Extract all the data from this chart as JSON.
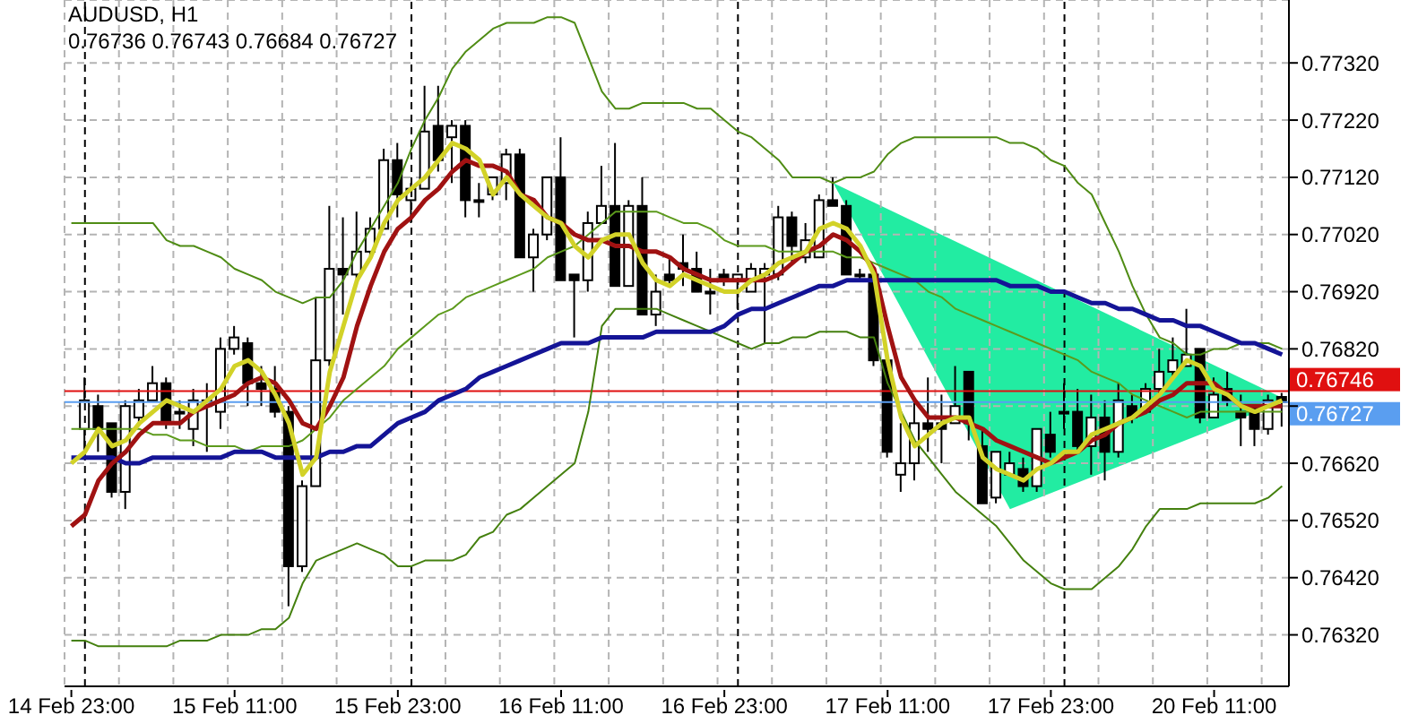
{
  "chart_data": {
    "type": "candlestick",
    "title": "AUDUSD, H1",
    "subtitle": "0.76736 0.76743 0.76684 0.76727",
    "categories": [
      "14 Feb 23:00",
      null,
      null,
      null,
      null,
      null,
      null,
      null,
      null,
      null,
      null,
      null,
      "15 Feb 11:00",
      null,
      null,
      null,
      null,
      null,
      null,
      null,
      null,
      null,
      null,
      null,
      "15 Feb 23:00",
      null,
      null,
      null,
      null,
      null,
      null,
      null,
      null,
      null,
      null,
      null,
      "16 Feb 11:00",
      null,
      null,
      null,
      null,
      null,
      null,
      null,
      null,
      null,
      null,
      null,
      "16 Feb 23:00",
      null,
      null,
      null,
      null,
      null,
      null,
      null,
      null,
      null,
      null,
      null,
      "17 Feb 11:00",
      null,
      null,
      null,
      null,
      null,
      null,
      null,
      null,
      null,
      null,
      null,
      "17 Feb 23:00",
      null,
      null,
      null,
      null,
      null,
      null,
      null,
      null,
      null,
      null,
      null,
      "20 Feb 11:00",
      null,
      null,
      null,
      null,
      null
    ],
    "ohlc": [
      null,
      [
        0.7668,
        0.7677,
        0.7664,
        0.7673
      ],
      [
        0.7672,
        0.7674,
        0.7664,
        0.7668
      ],
      [
        0.7669,
        0.7669,
        0.7656,
        0.7657
      ],
      [
        0.7657,
        0.7673,
        0.7654,
        0.7672
      ],
      [
        0.767,
        0.7675,
        0.7669,
        0.7673
      ],
      [
        0.7673,
        0.7679,
        0.7673,
        0.7676
      ],
      [
        0.7676,
        0.7677,
        0.7668,
        0.7669
      ],
      [
        0.7671,
        0.7673,
        0.7668,
        0.7671
      ],
      [
        0.7668,
        0.7675,
        0.7665,
        0.7673
      ],
      [
        0.7672,
        0.7676,
        0.7664,
        0.7673
      ],
      [
        0.7671,
        0.7684,
        0.7668,
        0.7682
      ],
      [
        0.7682,
        0.7686,
        0.7681,
        0.7684
      ],
      [
        0.7683,
        0.7684,
        0.7672,
        0.7676
      ],
      [
        0.7676,
        0.7679,
        0.7672,
        0.7675
      ],
      [
        0.7675,
        0.7679,
        0.767,
        0.7671
      ],
      [
        0.7671,
        0.7672,
        0.7637,
        0.7644
      ],
      [
        0.7644,
        0.7659,
        0.7643,
        0.7658
      ],
      [
        0.7658,
        0.7691,
        0.7658,
        0.768
      ],
      [
        0.768,
        0.7707,
        0.7679,
        0.7696
      ],
      [
        0.7696,
        0.7705,
        0.7688,
        0.7695
      ],
      [
        0.7695,
        0.7706,
        0.7694,
        0.7699
      ],
      [
        0.7699,
        0.7705,
        0.7698,
        0.7703
      ],
      [
        0.7703,
        0.7717,
        0.7703,
        0.7715
      ],
      [
        0.7715,
        0.7718,
        0.7705,
        0.7709
      ],
      [
        0.7708,
        0.7711,
        0.7704,
        0.771
      ],
      [
        0.771,
        0.7728,
        0.771,
        0.772
      ],
      [
        0.7721,
        0.7728,
        0.7713,
        0.7715
      ],
      [
        0.7719,
        0.7722,
        0.7711,
        0.7721
      ],
      [
        0.7721,
        0.7722,
        0.7705,
        0.7708
      ],
      [
        0.7708,
        0.7711,
        0.7705,
        0.7708
      ],
      [
        0.7709,
        0.7712,
        0.7708,
        0.7712
      ],
      [
        0.7711,
        0.7717,
        0.7708,
        0.7716
      ],
      [
        0.7716,
        0.7717,
        0.7698,
        0.7698
      ],
      [
        0.7698,
        0.7703,
        0.7692,
        0.7702
      ],
      [
        0.7702,
        0.7712,
        0.7701,
        0.7712
      ],
      [
        0.7712,
        0.7719,
        0.7694,
        0.7694
      ],
      [
        0.7695,
        0.7695,
        0.7684,
        0.7694
      ],
      [
        0.7694,
        0.7706,
        0.7692,
        0.7704
      ],
      [
        0.7704,
        0.7714,
        0.7704,
        0.7707
      ],
      [
        0.7707,
        0.7718,
        0.7693,
        0.7693
      ],
      [
        0.7693,
        0.7708,
        0.7693,
        0.7707
      ],
      [
        0.7707,
        0.7712,
        0.7688,
        0.7688
      ],
      [
        0.7688,
        0.7695,
        0.7686,
        0.7692
      ],
      [
        0.7695,
        0.7698,
        0.7693,
        0.7694
      ],
      [
        0.7697,
        0.7702,
        0.7693,
        0.7696
      ],
      [
        0.7696,
        0.7699,
        0.7692,
        0.7692
      ],
      [
        0.7692,
        0.7696,
        0.7688,
        0.7692
      ],
      [
        0.7695,
        0.7696,
        0.7693,
        0.7694
      ],
      [
        0.7694,
        0.7695,
        0.7689,
        0.7695
      ],
      [
        0.7692,
        0.7697,
        0.7692,
        0.7696
      ],
      [
        0.7695,
        0.7697,
        0.7683,
        0.7696
      ],
      [
        0.7695,
        0.7707,
        0.7694,
        0.7705
      ],
      [
        0.7705,
        0.7706,
        0.7697,
        0.77
      ],
      [
        0.7698,
        0.7704,
        0.7697,
        0.7701
      ],
      [
        0.7698,
        0.7709,
        0.7698,
        0.7708
      ],
      [
        0.7708,
        0.7712,
        0.7707,
        0.7707
      ],
      [
        0.7707,
        0.7708,
        0.7695,
        0.7695
      ],
      [
        0.7695,
        0.7696,
        0.7694,
        0.7695
      ],
      [
        0.7695,
        0.7695,
        0.7679,
        0.768
      ],
      [
        0.768,
        0.768,
        0.7663,
        0.7664
      ],
      [
        0.766,
        0.7669,
        0.7657,
        0.7662
      ],
      [
        0.7662,
        0.7673,
        0.7659,
        0.7669
      ],
      [
        0.7669,
        0.7677,
        0.7664,
        0.7668
      ],
      [
        0.7669,
        0.7674,
        0.7662,
        0.7668
      ],
      [
        0.7669,
        0.7679,
        0.7669,
        0.7672
      ],
      [
        0.7678,
        0.7678,
        0.7666,
        0.7669
      ],
      [
        0.7665,
        0.7668,
        0.7655,
        0.7655
      ],
      [
        0.7656,
        0.7664,
        0.7655,
        0.7664
      ],
      [
        0.766,
        0.7664,
        0.766,
        0.7662
      ],
      [
        0.7661,
        0.7663,
        0.7657,
        0.7658
      ],
      [
        0.7658,
        0.7668,
        0.7657,
        0.7668
      ],
      [
        0.7667,
        0.7671,
        0.7663,
        0.7664
      ],
      [
        0.7671,
        0.7676,
        0.7668,
        0.7671
      ],
      [
        0.7671,
        0.7675,
        0.7664,
        0.7665
      ],
      [
        0.7665,
        0.7674,
        0.766,
        0.767
      ],
      [
        0.767,
        0.7673,
        0.7659,
        0.7664
      ],
      [
        0.7664,
        0.7676,
        0.7663,
        0.7673
      ],
      [
        0.7672,
        0.7674,
        0.7669,
        0.767
      ],
      [
        0.7671,
        0.7676,
        0.7671,
        0.7675
      ],
      [
        0.7675,
        0.7682,
        0.7674,
        0.7678
      ],
      [
        0.7678,
        0.7684,
        0.7677,
        0.768
      ],
      [
        0.7679,
        0.7689,
        0.7679,
        0.7681
      ],
      [
        0.7682,
        0.7682,
        0.7669,
        0.767
      ],
      [
        0.767,
        0.7677,
        0.767,
        0.7674
      ],
      [
        0.7675,
        0.7678,
        0.7672,
        0.7673
      ],
      [
        0.7671,
        0.7674,
        0.7665,
        0.767
      ],
      [
        0.7672,
        0.7672,
        0.7665,
        0.7668
      ],
      [
        0.7668,
        0.7674,
        0.7667,
        0.7673
      ],
      [
        0.76736,
        0.76743,
        0.76684,
        0.76727
      ]
    ],
    "series": [
      {
        "type": "line",
        "color": "#4f8c14",
        "values": [
          0.7704,
          0.7704,
          0.7704,
          0.7704,
          0.7704,
          0.7704,
          0.7704,
          0.7701,
          0.77,
          0.77,
          0.7699,
          0.7698,
          0.7696,
          0.7695,
          0.7694,
          0.7692,
          0.7691,
          0.769,
          0.7691,
          0.7691,
          0.7694,
          0.7699,
          0.7703,
          0.7707,
          0.7711,
          0.7717,
          0.7722,
          0.7726,
          0.7731,
          0.7734,
          0.7736,
          0.7738,
          0.7739,
          0.7739,
          0.7739,
          0.774,
          0.774,
          0.7739,
          0.7733,
          0.7727,
          0.7724,
          0.7724,
          0.7725,
          0.7725,
          0.7725,
          0.7725,
          0.7724,
          0.7724,
          0.7722,
          0.772,
          0.7719,
          0.7717,
          0.7715,
          0.7712,
          0.7712,
          0.7712,
          0.7711,
          0.7712,
          0.7712,
          0.7713,
          0.7716,
          0.7718,
          0.7719,
          0.7719,
          0.7719,
          0.7719,
          0.7719,
          0.7719,
          0.7719,
          0.7718,
          0.7718,
          0.7717,
          0.7715,
          0.7714,
          0.7711,
          0.7709,
          0.7704,
          0.7699,
          0.7693,
          0.7688,
          0.7684,
          0.7683,
          0.7681,
          0.7681,
          0.7682,
          0.7682,
          0.7683,
          0.7683,
          0.7683,
          0.7682
        ]
      },
      {
        "type": "line",
        "color": "#5c9a1c",
        "values": [
          0.7668,
          0.7668,
          0.7668,
          0.7668,
          0.7668,
          0.7668,
          0.7667,
          0.7667,
          0.7666,
          0.7666,
          0.7665,
          0.7665,
          0.7665,
          0.7664,
          0.7665,
          0.7665,
          0.7665,
          0.7666,
          0.7668,
          0.767,
          0.7673,
          0.7675,
          0.7677,
          0.7679,
          0.7682,
          0.7684,
          0.7686,
          0.7688,
          0.7689,
          0.7691,
          0.7692,
          0.7693,
          0.7694,
          0.7695,
          0.7696,
          0.7698,
          0.7699,
          0.77,
          0.7702,
          0.7704,
          0.7706,
          0.7706,
          0.7706,
          0.7706,
          0.7705,
          0.7704,
          0.7704,
          0.7703,
          0.7701,
          0.77,
          0.77,
          0.77,
          0.7699,
          0.7699,
          0.7699,
          0.7699,
          0.7699,
          0.7698,
          0.7698,
          0.7697,
          0.7696,
          0.7695,
          0.7694,
          0.7692,
          0.7691,
          0.7689,
          0.7688,
          0.7687,
          0.7686,
          0.7685,
          0.7684,
          0.7683,
          0.7682,
          0.7681,
          0.768,
          0.7678,
          0.7677,
          0.7676,
          0.7674,
          0.7673,
          0.7672,
          0.7671,
          0.767,
          0.7671,
          0.7671,
          0.7671,
          0.7671,
          0.7671,
          0.7671,
          0.7671
        ]
      },
      {
        "type": "line",
        "color": "#44800e",
        "values": [
          0.7631,
          0.7631,
          0.763,
          0.763,
          0.763,
          0.763,
          0.763,
          0.763,
          0.7631,
          0.7631,
          0.7631,
          0.7632,
          0.7632,
          0.7632,
          0.7633,
          0.7633,
          0.7635,
          0.7641,
          0.7645,
          0.7646,
          0.7647,
          0.7648,
          0.7647,
          0.7646,
          0.7644,
          0.7644,
          0.7645,
          0.7645,
          0.7645,
          0.7646,
          0.7649,
          0.765,
          0.7653,
          0.7654,
          0.7656,
          0.7658,
          0.766,
          0.7662,
          0.7671,
          0.7686,
          0.7689,
          0.7689,
          0.7689,
          0.7689,
          0.7688,
          0.7687,
          0.7686,
          0.7685,
          0.7684,
          0.7683,
          0.7682,
          0.7683,
          0.7683,
          0.7684,
          0.7684,
          0.7685,
          0.7685,
          0.7685,
          0.7684,
          0.7684,
          0.7676,
          0.7671,
          0.7666,
          0.7663,
          0.766,
          0.7657,
          0.7655,
          0.7653,
          0.7651,
          0.7648,
          0.7645,
          0.7643,
          0.7641,
          0.764,
          0.764,
          0.764,
          0.7642,
          0.7644,
          0.7647,
          0.7651,
          0.7654,
          0.7654,
          0.7654,
          0.7655,
          0.7655,
          0.7655,
          0.7655,
          0.7655,
          0.7656,
          0.7658
        ]
      },
      {
        "type": "line",
        "color": "#141496",
        "values": [
          0.7663,
          0.7663,
          0.7663,
          0.7663,
          0.7662,
          0.7662,
          0.7663,
          0.7663,
          0.7663,
          0.7663,
          0.7663,
          0.7663,
          0.7664,
          0.7664,
          0.7664,
          0.7663,
          0.7663,
          0.7663,
          0.7663,
          0.7664,
          0.7664,
          0.7665,
          0.7665,
          0.7667,
          0.7669,
          0.767,
          0.7671,
          0.7673,
          0.7674,
          0.7675,
          0.7677,
          0.7678,
          0.7679,
          0.768,
          0.7681,
          0.7682,
          0.7683,
          0.7683,
          0.7683,
          0.7684,
          0.7684,
          0.7684,
          0.7684,
          0.7685,
          0.7685,
          0.7685,
          0.7685,
          0.7685,
          0.7686,
          0.7688,
          0.7689,
          0.7689,
          0.769,
          0.7691,
          0.7692,
          0.7693,
          0.7693,
          0.7694,
          0.7694,
          0.7694,
          0.7694,
          0.7694,
          0.7694,
          0.7694,
          0.7694,
          0.7694,
          0.7694,
          0.7694,
          0.7694,
          0.7693,
          0.7693,
          0.7693,
          0.7692,
          0.7692,
          0.7691,
          0.769,
          0.769,
          0.7689,
          0.7689,
          0.7688,
          0.7687,
          0.7687,
          0.7686,
          0.7686,
          0.7685,
          0.7684,
          0.7683,
          0.7683,
          0.7682,
          0.7681
        ]
      },
      {
        "type": "line",
        "color": "#a01212",
        "values": [
          0.7651,
          0.7653,
          0.7659,
          0.7662,
          0.7664,
          0.7667,
          0.7669,
          0.7669,
          0.7669,
          0.7671,
          0.7672,
          0.7673,
          0.7674,
          0.7676,
          0.7677,
          0.7676,
          0.7673,
          0.7669,
          0.7668,
          0.7672,
          0.7677,
          0.7686,
          0.7693,
          0.7699,
          0.7703,
          0.7705,
          0.7708,
          0.771,
          0.7713,
          0.7715,
          0.7714,
          0.7714,
          0.7713,
          0.7709,
          0.7708,
          0.7705,
          0.7704,
          0.7702,
          0.7701,
          0.7701,
          0.77,
          0.77,
          0.7699,
          0.7699,
          0.7698,
          0.7696,
          0.7695,
          0.7694,
          0.7694,
          0.7694,
          0.7694,
          0.7694,
          0.7695,
          0.7697,
          0.7699,
          0.77,
          0.7702,
          0.7701,
          0.7699,
          0.7696,
          0.7686,
          0.7677,
          0.7673,
          0.767,
          0.767,
          0.767,
          0.7669,
          0.7668,
          0.7666,
          0.7665,
          0.7664,
          0.7663,
          0.7662,
          0.7663,
          0.7664,
          0.7666,
          0.7667,
          0.7669,
          0.767,
          0.7671,
          0.7673,
          0.7674,
          0.7676,
          0.7676,
          0.7676,
          0.7674,
          0.7672,
          0.7672,
          0.7672,
          0.7672
        ]
      },
      {
        "type": "line",
        "color": "#d2d228",
        "values": [
          0.7662,
          0.7664,
          0.7668,
          0.7665,
          0.7666,
          0.7669,
          0.7671,
          0.7673,
          0.7672,
          0.7671,
          0.7673,
          0.7675,
          0.7679,
          0.768,
          0.7678,
          0.7674,
          0.7669,
          0.766,
          0.7663,
          0.7678,
          0.7686,
          0.7694,
          0.7698,
          0.7704,
          0.7708,
          0.771,
          0.7712,
          0.7715,
          0.7718,
          0.7717,
          0.7715,
          0.7709,
          0.7712,
          0.7709,
          0.7707,
          0.7705,
          0.7704,
          0.77,
          0.7698,
          0.7701,
          0.7702,
          0.7702,
          0.7697,
          0.7694,
          0.7693,
          0.7695,
          0.7694,
          0.7693,
          0.7692,
          0.7692,
          0.7694,
          0.7695,
          0.7697,
          0.7698,
          0.7699,
          0.7703,
          0.7704,
          0.7703,
          0.77,
          0.7695,
          0.768,
          0.767,
          0.7665,
          0.7667,
          0.7669,
          0.767,
          0.767,
          0.7663,
          0.7661,
          0.766,
          0.7659,
          0.7661,
          0.7662,
          0.7664,
          0.7664,
          0.7667,
          0.7668,
          0.7669,
          0.767,
          0.7672,
          0.7674,
          0.7677,
          0.768,
          0.7679,
          0.7675,
          0.7674,
          0.7672,
          0.7671,
          0.7672,
          0.7673
        ]
      }
    ],
    "ylim": [
      0.7623,
      0.7743
    ],
    "yticks": [
      {
        "value": 0.7632,
        "label": "0.76320"
      },
      {
        "value": 0.7642,
        "label": "0.76420"
      },
      {
        "value": 0.7652,
        "label": "0.76520"
      },
      {
        "value": 0.7662,
        "label": "0.76620"
      },
      {
        "value": 0.7672,
        "label": null
      },
      {
        "value": 0.7682,
        "label": "0.76820"
      },
      {
        "value": 0.7692,
        "label": "0.76920"
      },
      {
        "value": 0.7702,
        "label": "0.77020"
      },
      {
        "value": 0.7712,
        "label": "0.77120"
      },
      {
        "value": 0.7722,
        "label": "0.77220"
      },
      {
        "value": 0.7732,
        "label": "0.77320"
      }
    ],
    "ref_lines": [
      {
        "axis": "y",
        "value": 0.76746,
        "label": "0.76746",
        "color": "#e01010"
      },
      {
        "axis": "y",
        "value": 0.76727,
        "label": "0.76727",
        "color": "#5a9ef0"
      }
    ],
    "grid": true
  }
}
